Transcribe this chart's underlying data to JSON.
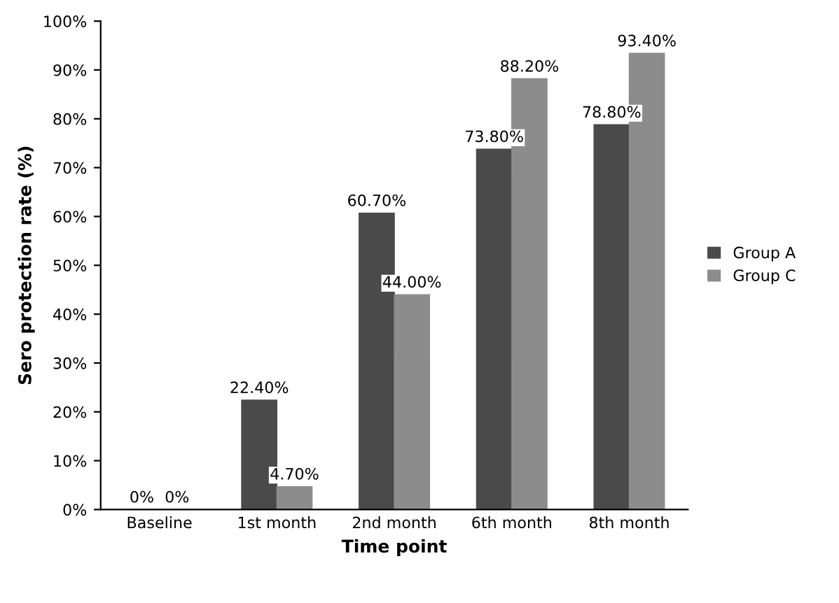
{
  "chart_data": {
    "type": "bar",
    "xlabel": "Time point",
    "ylabel": "Sero protection rate (%)",
    "categories": [
      "Baseline",
      "1st month",
      "2nd month",
      "6th month",
      "8th month"
    ],
    "series": [
      {
        "name": "Group A",
        "color": "#4a4a4a",
        "values": [
          0,
          22.4,
          60.7,
          73.8,
          78.8
        ],
        "value_labels": [
          "0%",
          "22.40%",
          "60.70%",
          "73.80%",
          "78.80%"
        ]
      },
      {
        "name": "Group C",
        "color": "#8c8c8c",
        "values": [
          0,
          4.7,
          44.0,
          88.2,
          93.4
        ],
        "value_labels": [
          "0%",
          "4.70%",
          "44.00%",
          "88.20%",
          "93.40%"
        ]
      }
    ],
    "ylim": [
      0,
      100
    ],
    "yticks": [
      {
        "value": 0,
        "label": "0%"
      },
      {
        "value": 10,
        "label": "10%"
      },
      {
        "value": 20,
        "label": "20%"
      },
      {
        "value": 30,
        "label": "30%"
      },
      {
        "value": 40,
        "label": "40%"
      },
      {
        "value": 50,
        "label": "50%"
      },
      {
        "value": 60,
        "label": "60%"
      },
      {
        "value": 70,
        "label": "70%"
      },
      {
        "value": 80,
        "label": "80%"
      },
      {
        "value": 90,
        "label": "90%"
      },
      {
        "value": 100,
        "label": "100%"
      }
    ],
    "grid": false,
    "legend": "right"
  }
}
